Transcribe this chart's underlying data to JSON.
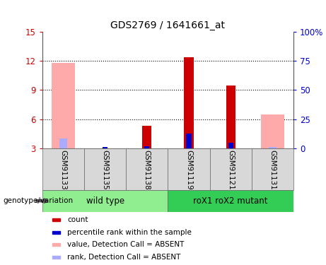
{
  "title": "GDS2769 / 1641661_at",
  "samples": [
    "GSM91133",
    "GSM91135",
    "GSM91138",
    "GSM91119",
    "GSM91121",
    "GSM91131"
  ],
  "groups": [
    {
      "label": "wild type",
      "color": "#90ee90",
      "start": 0,
      "end": 3
    },
    {
      "label": "roX1 roX2 mutant",
      "color": "#33cc55",
      "start": 3,
      "end": 6
    }
  ],
  "ylim_left": [
    3,
    15
  ],
  "ylim_right": [
    0,
    100
  ],
  "yticks_left": [
    3,
    6,
    9,
    12,
    15
  ],
  "ytick_labels_left": [
    "3",
    "6",
    "9",
    "12",
    "15"
  ],
  "yticks_right": [
    0,
    25,
    50,
    75,
    100
  ],
  "ytick_labels_right": [
    "0",
    "25",
    "50",
    "75",
    "100%"
  ],
  "bars": {
    "GSM91133": {
      "value_absent": 11.8,
      "rank_absent": 4.0,
      "count": null,
      "rank": null
    },
    "GSM91135": {
      "value_absent": null,
      "rank_absent": null,
      "count": null,
      "rank": 3.15
    },
    "GSM91138": {
      "value_absent": null,
      "rank_absent": null,
      "count": 5.3,
      "rank": 3.25
    },
    "GSM91119": {
      "value_absent": null,
      "rank_absent": null,
      "count": 12.35,
      "rank": 4.5
    },
    "GSM91121": {
      "value_absent": null,
      "rank_absent": null,
      "count": 9.5,
      "rank": 3.6
    },
    "GSM91131": {
      "value_absent": 6.5,
      "rank_absent": 3.15,
      "count": null,
      "rank": null
    }
  },
  "bar_bottom": 3,
  "colors": {
    "count": "#cc0000",
    "rank": "#0000cc",
    "value_absent": "#ffaaaa",
    "rank_absent": "#aaaaff"
  },
  "legend_items": [
    {
      "color": "#cc0000",
      "label": "count"
    },
    {
      "color": "#0000cc",
      "label": "percentile rank within the sample"
    },
    {
      "color": "#ffaaaa",
      "label": "value, Detection Call = ABSENT"
    },
    {
      "color": "#aaaaff",
      "label": "rank, Detection Call = ABSENT"
    }
  ],
  "left_tick_color": "#cc0000",
  "right_tick_color": "#0000cc",
  "bg_color": "#d8d8d8",
  "plot_bg_color": "#ffffff",
  "annotation_text": "genotype/variation"
}
